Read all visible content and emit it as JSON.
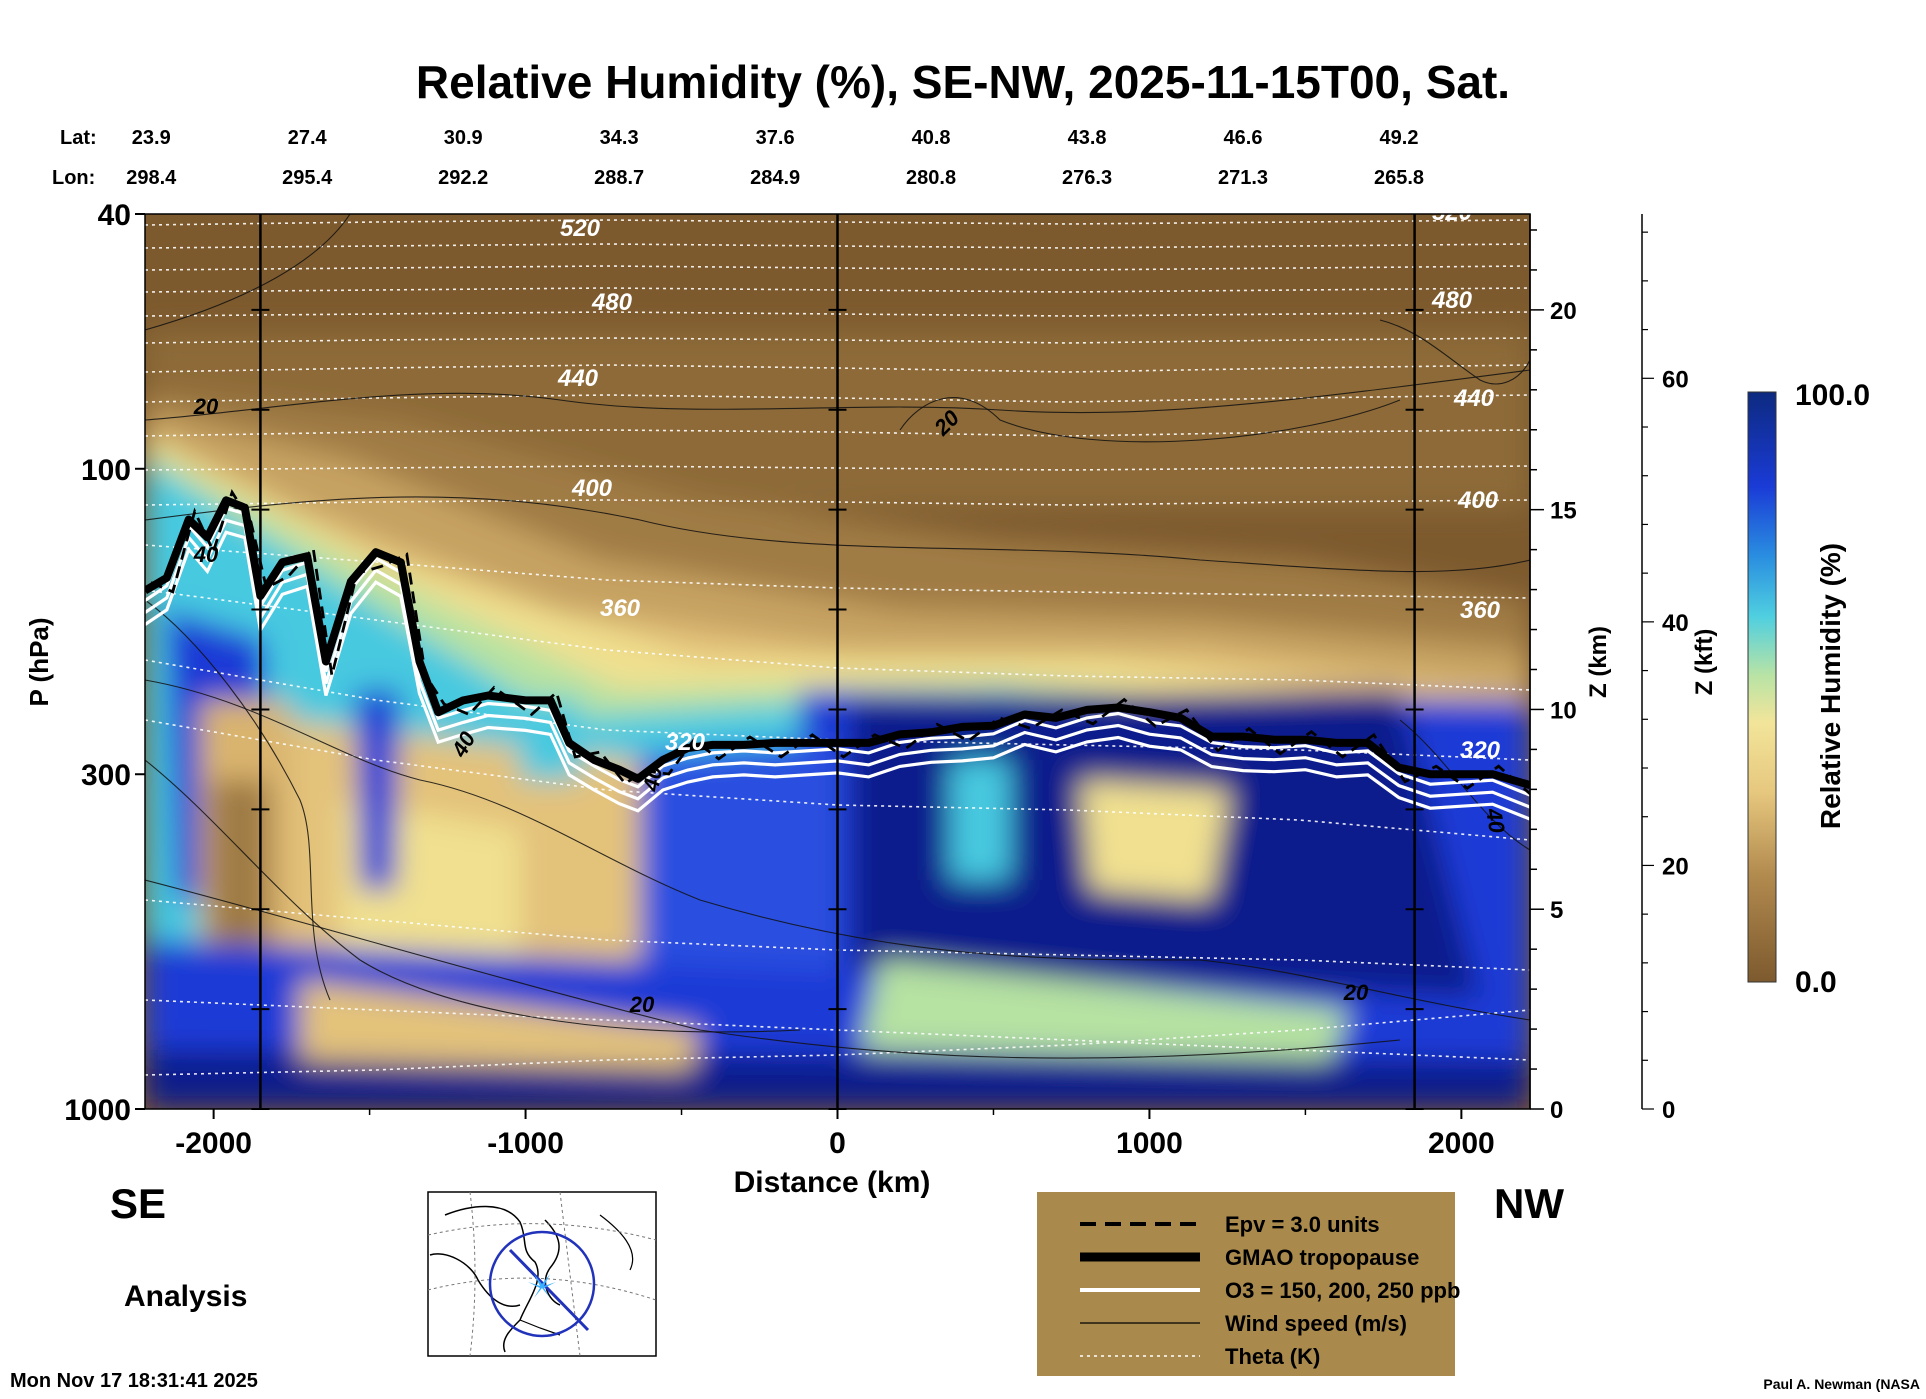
{
  "chart_data": {
    "type": "contour-cross-section",
    "title": "Relative Humidity (%), SE-NW, 2025-11-15T00, Sat.",
    "xlabel": "Distance (km)",
    "ylabel": "P (hPa)",
    "y2label": "Z (km)",
    "y3label": "Z (kft)",
    "colorbar_label": "Relative Humidity (%)",
    "colorbar_max_label": "100.0",
    "colorbar_min_label": "0.0",
    "xlim": [
      -2220,
      2220
    ],
    "ylim_hpa": [
      1000,
      40
    ],
    "x_ticks": [
      -2000,
      -1000,
      0,
      1000,
      2000
    ],
    "x_tick_labels": [
      "-2000",
      "-1000",
      "0",
      "1000",
      "2000"
    ],
    "p_ticks": [
      40,
      100,
      300,
      1000
    ],
    "p_tick_labels": [
      "40",
      "100",
      "300",
      "1000"
    ],
    "z_km_ticks": [
      0,
      5,
      10,
      15,
      20
    ],
    "z_km_labels": [
      "0",
      "5",
      "10",
      "15",
      "20"
    ],
    "z_kft_ticks": [
      0,
      20,
      40,
      60
    ],
    "z_kft_labels": [
      "0",
      "20",
      "40",
      "60"
    ],
    "vertical_markers_km": [
      -1850,
      0,
      1850
    ],
    "lat_header": "Lat:",
    "lon_header": "Lon:",
    "lat_labels": [
      "23.9",
      "27.4",
      "30.9",
      "34.3",
      "37.6",
      "40.8",
      "43.8",
      "46.6",
      "49.2"
    ],
    "lon_labels": [
      "298.4",
      "295.4",
      "292.2",
      "288.7",
      "284.9",
      "280.8",
      "276.3",
      "271.3",
      "265.8"
    ],
    "lat_lon_x_km": [
      -2200,
      -1700,
      -1200,
      -700,
      -200,
      300,
      800,
      1300,
      1800
    ],
    "tropopause_hpa": {
      "x": [
        -2220,
        -2150,
        -2080,
        -2020,
        -1960,
        -1900,
        -1850,
        -1780,
        -1700,
        -1640,
        -1560,
        -1480,
        -1400,
        -1340,
        -1280,
        -1200,
        -1120,
        -1000,
        -920,
        -860,
        -780,
        -700,
        -640,
        -560,
        -480,
        -400,
        -300,
        -200,
        -100,
        0,
        100,
        200,
        300,
        400,
        500,
        600,
        700,
        800,
        900,
        1000,
        1100,
        1200,
        1300,
        1400,
        1500,
        1600,
        1700,
        1800,
        1900,
        2000,
        2100,
        2220
      ],
      "p": [
        155,
        148,
        120,
        128,
        112,
        115,
        158,
        140,
        137,
        200,
        150,
        135,
        140,
        200,
        240,
        230,
        226,
        230,
        230,
        268,
        285,
        295,
        305,
        285,
        273,
        270,
        270,
        268,
        268,
        268,
        268,
        260,
        258,
        253,
        252,
        242,
        245,
        238,
        236,
        240,
        245,
        262,
        262,
        265,
        265,
        268,
        268,
        293,
        300,
        300,
        300,
        312
      ]
    },
    "theta_labels": [
      "520",
      "480",
      "440",
      "400",
      "360",
      "320"
    ],
    "wind_labels": [
      "20",
      "40"
    ],
    "sides": {
      "left": "SE",
      "right": "NW"
    },
    "mode": "Analysis",
    "timestamp": "Mon Nov 17 18:31:41 2025",
    "credit": "Paul A. Newman (NASA",
    "legend": [
      {
        "label": "Epv = 3.0 units",
        "style": "dashed"
      },
      {
        "label": "GMAO tropopause",
        "style": "thick-black"
      },
      {
        "label": "O3 = 150, 200, 250 ppb",
        "style": "white"
      },
      {
        "label": "Wind speed (m/s)",
        "style": "thin-black"
      },
      {
        "label": "Theta (K)",
        "style": "white-dotted"
      }
    ],
    "colors": {
      "dry_dark": "#7d5a2e",
      "dry": "#a07c45",
      "tan": "#d6b370",
      "yellow": "#f1e28f",
      "green": "#b6e2a2",
      "cyan": "#34c8e3",
      "blue": "#1a3bd6",
      "navy": "#0a1a8c",
      "legend_bg": "#a98a4c"
    }
  }
}
